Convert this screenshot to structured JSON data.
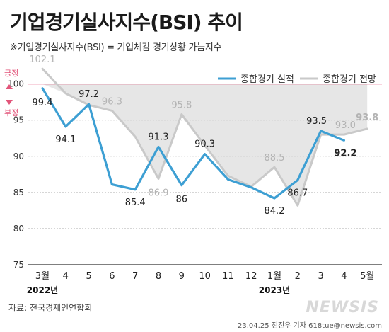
{
  "title": "기업경기실사지수(BSI) 추이",
  "subtitle": "※기업경기실사지수(BSI) = 기업체감 경기상황 가늠지수",
  "legend": {
    "actual": "종합경기 실적",
    "outlook": "종합경기 전망"
  },
  "reference": {
    "value": 100,
    "positive_label": "긍정",
    "negative_label": "부정"
  },
  "source": "자료: 전국경제인연합회",
  "credit": "23.04.25 전진우 기자 618tue@newsis.com",
  "logo": "NEWSIS",
  "colors": {
    "actual": "#3d9fd3",
    "outlook": "#c9c9c9",
    "shade": "#e6e6e6",
    "reference": "#e2557a"
  },
  "chart_data": {
    "type": "line",
    "categories": [
      "3월",
      "4",
      "5",
      "6",
      "7",
      "8",
      "9",
      "10",
      "11",
      "12",
      "1월",
      "2",
      "3",
      "4",
      "5월"
    ],
    "year_labels": [
      {
        "label": "2022년",
        "category_index": 0
      },
      {
        "label": "2023년",
        "category_index": 10
      }
    ],
    "series": [
      {
        "name": "종합경기 실적",
        "values": [
          99.4,
          94.1,
          97.2,
          86.1,
          85.4,
          91.3,
          86,
          90.3,
          86.8,
          85.7,
          84.2,
          86.7,
          93.5,
          92.2,
          null
        ],
        "labels": [
          "99.4",
          "94.1",
          "97.2",
          "",
          "85.4",
          "91.3",
          "86",
          "90.3",
          "",
          "",
          "84.2",
          "86.7",
          "93.5",
          "92.2",
          ""
        ]
      },
      {
        "name": "종합경기 전망",
        "values": [
          102.1,
          98.7,
          97.1,
          96.3,
          92.7,
          86.9,
          95.8,
          91.5,
          87.3,
          85.8,
          88.5,
          83.2,
          93.0,
          93.0,
          93.8
        ],
        "labels": [
          "102.1",
          "",
          "",
          "96.3",
          "",
          "86.9",
          "95.8",
          "",
          "",
          "",
          "88.5",
          "",
          "",
          "93.0",
          "93.8"
        ]
      }
    ],
    "yticks": [
      75,
      80,
      85,
      90,
      95,
      100
    ],
    "ylim": [
      75,
      103
    ],
    "grid": true,
    "legend_position": "top-right"
  }
}
